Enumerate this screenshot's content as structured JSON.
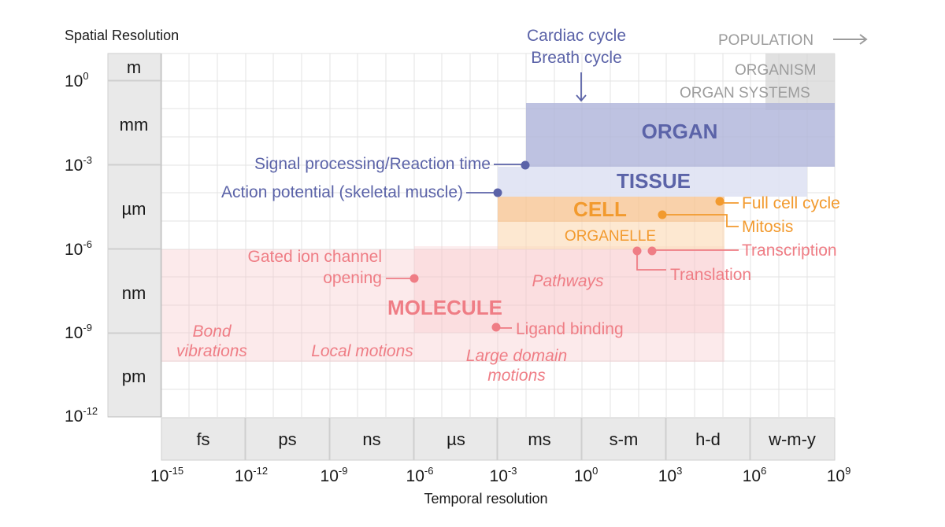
{
  "y_axis": {
    "title": "Spatial Resolution",
    "units": [
      "m",
      "mm",
      "µm",
      "nm",
      "pm"
    ],
    "ticks": [
      {
        "base": "10",
        "exp": "0"
      },
      {
        "base": "10",
        "exp": "-3"
      },
      {
        "base": "10",
        "exp": "-6"
      },
      {
        "base": "10",
        "exp": "-9"
      },
      {
        "base": "10",
        "exp": "-12"
      }
    ]
  },
  "x_axis": {
    "title": "Temporal resolution",
    "units": [
      "fs",
      "ps",
      "ns",
      "µs",
      "ms",
      "s-m",
      "h-d",
      "w-m-y"
    ],
    "ticks": [
      {
        "base": "10",
        "exp": "-15"
      },
      {
        "base": "10",
        "exp": "-12"
      },
      {
        "base": "10",
        "exp": "-9"
      },
      {
        "base": "10",
        "exp": "-6"
      },
      {
        "base": "10",
        "exp": "-3"
      },
      {
        "base": "10",
        "exp": "0"
      },
      {
        "base": "10",
        "exp": "3"
      },
      {
        "base": "10",
        "exp": "6"
      },
      {
        "base": "10",
        "exp": "9"
      }
    ]
  },
  "colors": {
    "organ": "#5b63a8",
    "cell": "#f29a2e",
    "molecule": "#ef7d85",
    "population": "#a3a3a3",
    "grid": "#e3e3e3",
    "unit_box": "#e9e9e9"
  },
  "scales": {
    "population": "POPULATION",
    "organism": "ORGANISM",
    "organ_systems": "ORGAN SYSTEMS",
    "organ": "ORGAN",
    "tissue": "TISSUE",
    "cell": "CELL",
    "organelle": "ORGANELLE",
    "molecule": "MOLECULE"
  },
  "events": {
    "cardiac_cycle": "Cardiac cycle",
    "breath_cycle": "Breath cycle",
    "signal_processing": "Signal processing/Reaction time",
    "action_potential": "Action potential (skeletal muscle)",
    "full_cell_cycle": "Full cell cycle",
    "mitosis": "Mitosis",
    "transcription": "Transcription",
    "translation": "Translation",
    "gated_ion_1": "Gated ion channel",
    "gated_ion_2": "opening",
    "pathways": "Pathways",
    "ligand_binding": "Ligand binding",
    "bond_1": "Bond",
    "bond_2": "vibrations",
    "local_motions": "Local motions",
    "large_domain_1": "Large domain",
    "large_domain_2": "motions"
  }
}
